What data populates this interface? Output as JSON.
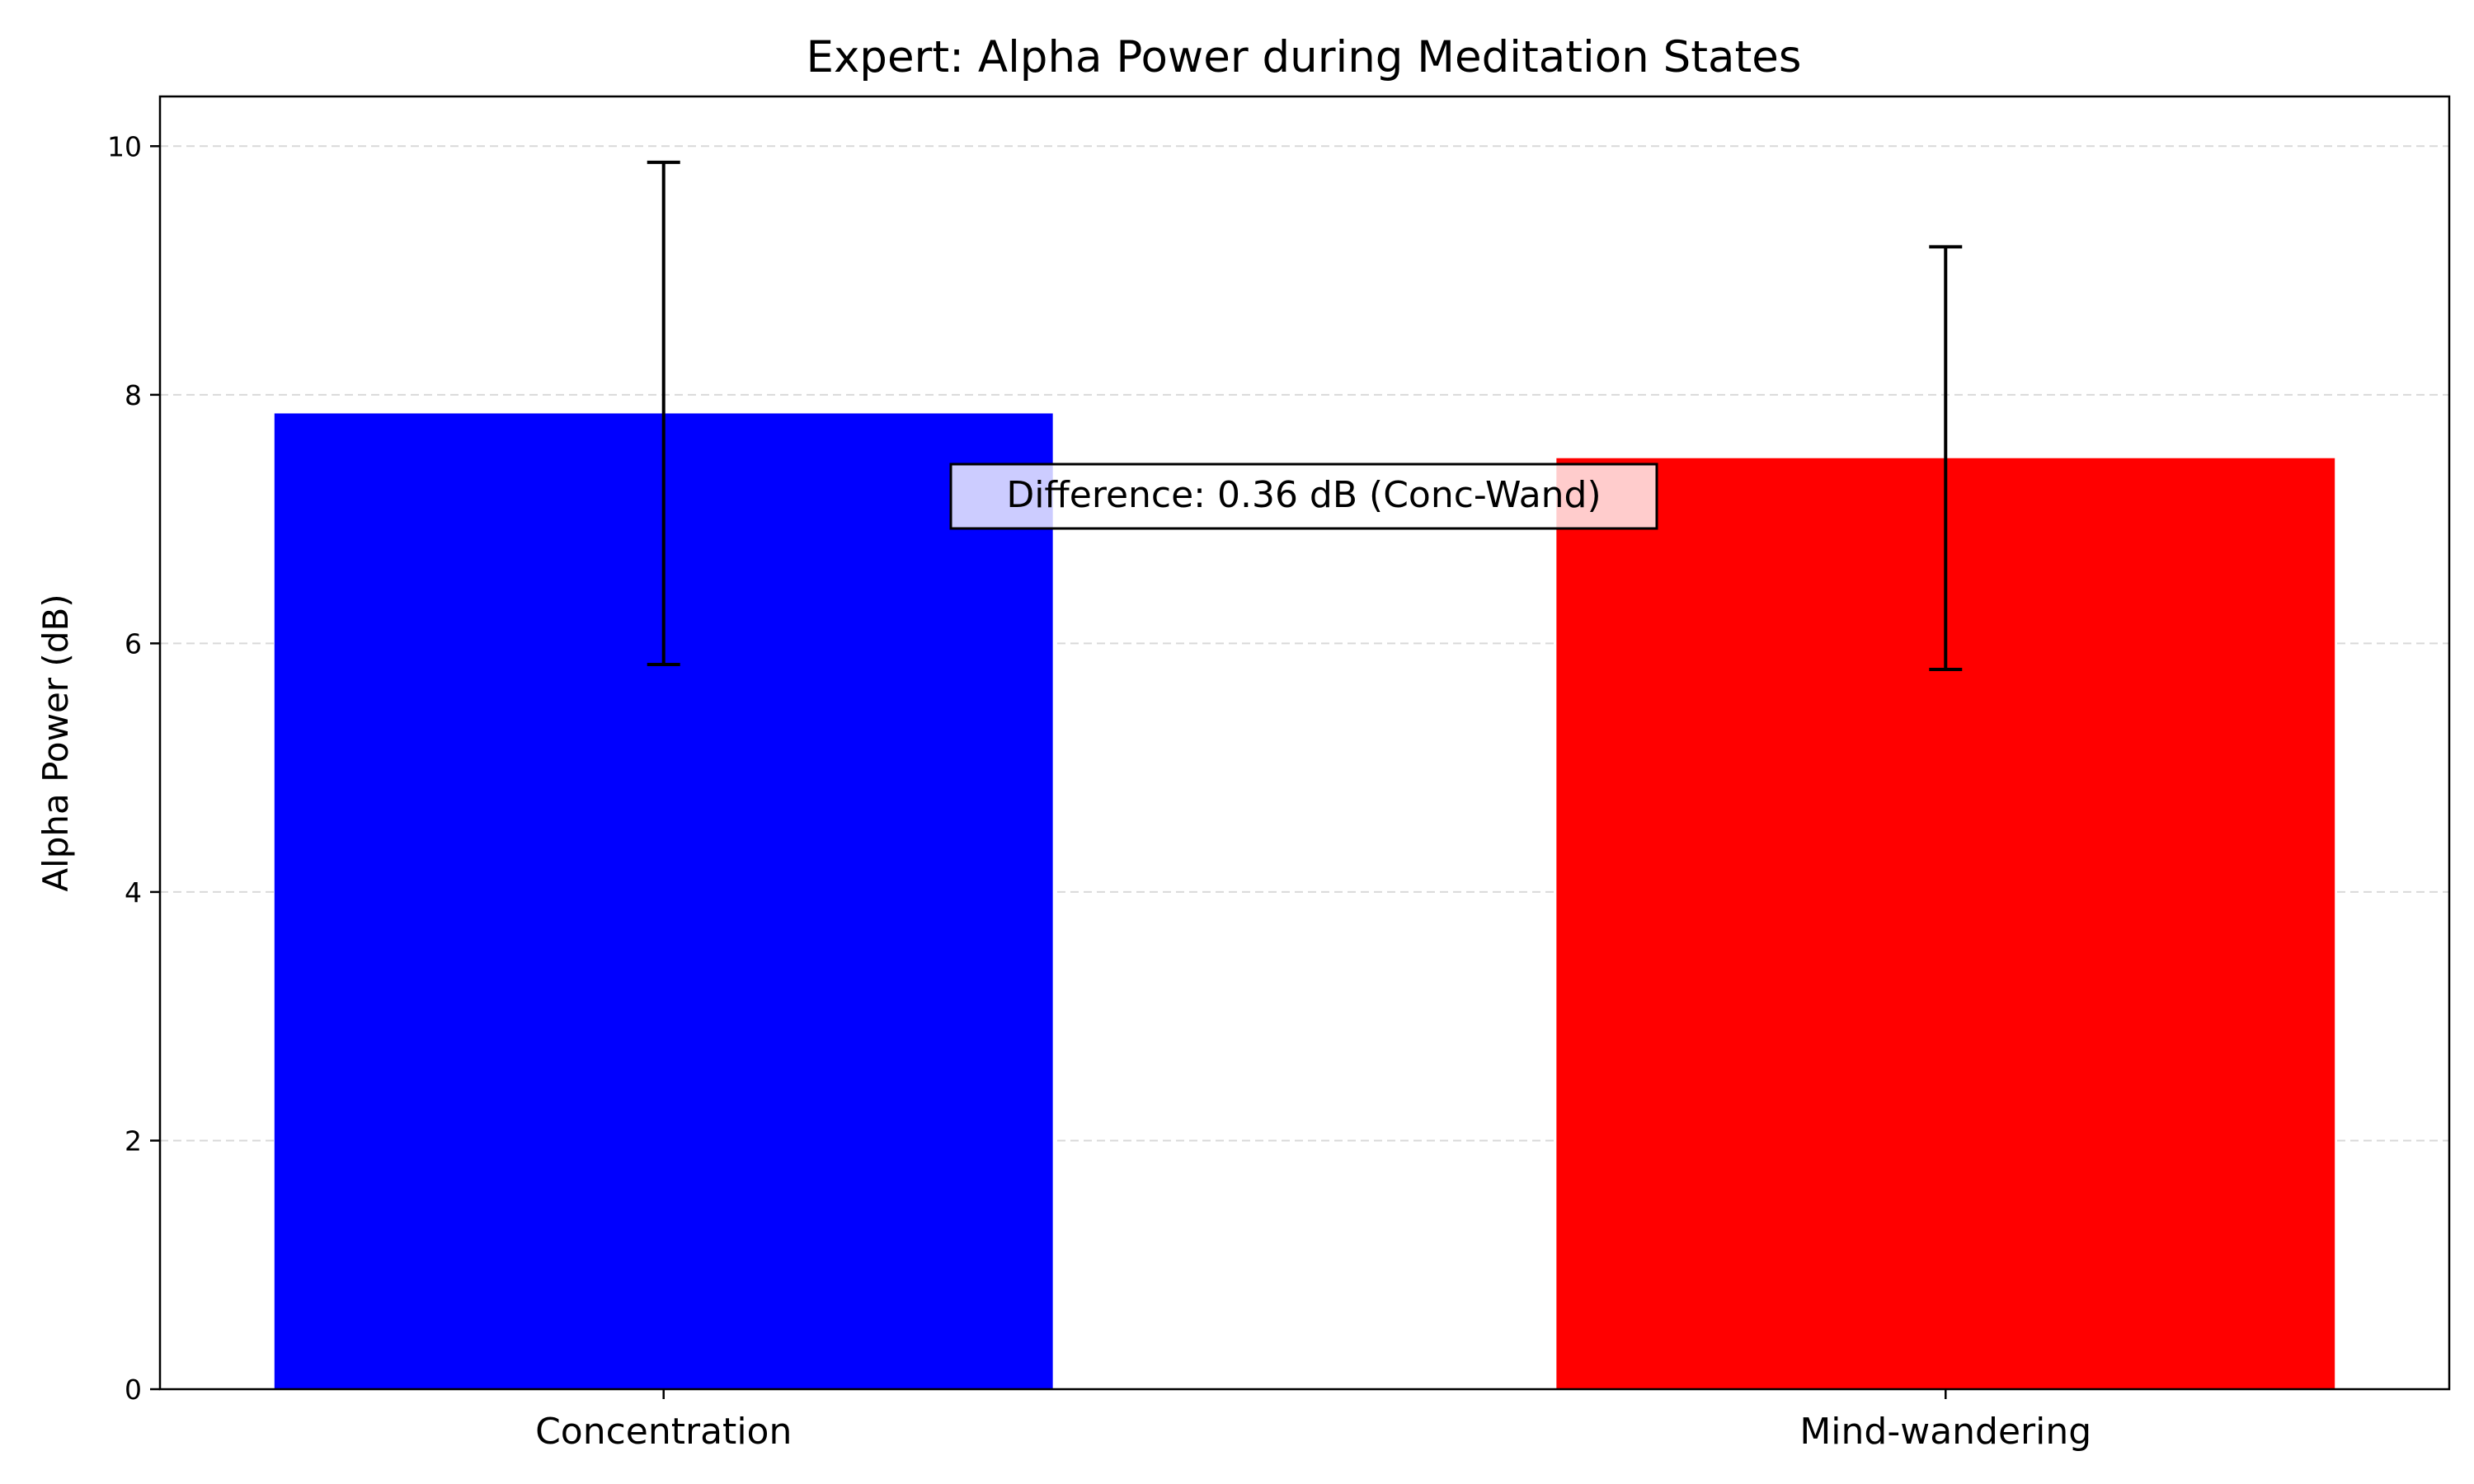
{
  "chart_data": {
    "type": "bar",
    "title": "Expert: Alpha Power during Meditation States",
    "xlabel": "",
    "ylabel": "Alpha Power (dB)",
    "categories": [
      "Concentration",
      "Mind-wandering"
    ],
    "values": [
      7.85,
      7.49
    ],
    "errors": [
      2.02,
      1.7
    ],
    "colors": [
      "#0000ff",
      "#ff0000"
    ],
    "ylim": [
      0,
      10.4
    ],
    "yticks": [
      0,
      2,
      4,
      6,
      8,
      10
    ],
    "grid": "y-dashed",
    "annotation": "Difference: 0.36 dB (Conc-Wand)"
  }
}
